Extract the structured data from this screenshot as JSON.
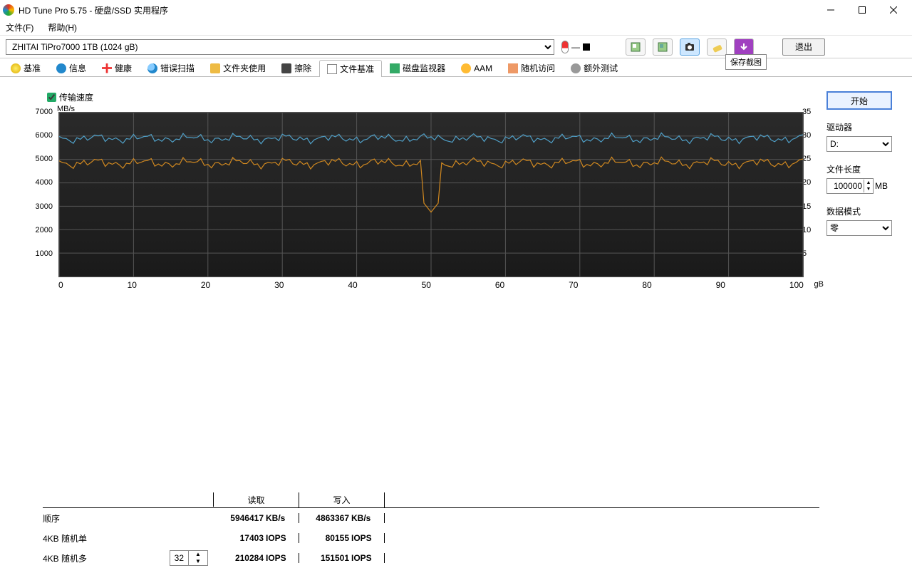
{
  "window": {
    "title": "HD Tune Pro 5.75 - 硬盘/SSD 实用程序"
  },
  "menu": {
    "file": "文件(F)",
    "help": "帮助(H)"
  },
  "toolbar": {
    "drive_selected": "ZHITAI TiPro7000 1TB (1024 gB)",
    "temp_dash": "—",
    "tooltip": "保存截图",
    "exit_label": "退出"
  },
  "tabs": [
    {
      "label": "基准"
    },
    {
      "label": "信息"
    },
    {
      "label": "健康"
    },
    {
      "label": "错误扫描"
    },
    {
      "label": "文件夹使用"
    },
    {
      "label": "擦除"
    },
    {
      "label": "文件基准"
    },
    {
      "label": "磁盘监视器"
    },
    {
      "label": "AAM"
    },
    {
      "label": "随机访问"
    },
    {
      "label": "额外测试"
    }
  ],
  "active_tab": 6,
  "checkbox": {
    "label": "传输速度",
    "checked": true
  },
  "chart": {
    "type": "line",
    "background_color": "#222222",
    "grid_color": "#555555",
    "left_axis": {
      "unit": "MB/s",
      "min": 0,
      "max": 7000,
      "ticks": [
        1000,
        2000,
        3000,
        4000,
        5000,
        6000,
        7000
      ]
    },
    "right_axis": {
      "min": 0,
      "max": 35,
      "ticks": [
        5,
        10,
        15,
        20,
        25,
        30,
        35
      ]
    },
    "x_axis": {
      "min": 0,
      "max": 100,
      "step": 10,
      "unit": "gB"
    },
    "series": [
      {
        "name": "read",
        "color": "#50a0c8",
        "avg": 5900,
        "min": 5600,
        "max": 6100
      },
      {
        "name": "write",
        "color": "#d08820",
        "avg": 4850,
        "min": 4500,
        "max": 5050,
        "dip_x": 50,
        "dip_y": 2750
      }
    ]
  },
  "results": {
    "headers": {
      "read": "读取",
      "write": "写入"
    },
    "rows": [
      {
        "label": "顺序",
        "read_val": "5946417",
        "read_unit": "KB/s",
        "write_val": "4863367",
        "write_unit": "KB/s"
      },
      {
        "label": "4KB 随机单",
        "read_val": "17403",
        "read_unit": "IOPS",
        "write_val": "80155",
        "write_unit": "IOPS"
      },
      {
        "label": "4KB 随机多",
        "stepper": "32",
        "read_val": "210284",
        "read_unit": "IOPS",
        "write_val": "151501",
        "write_unit": "IOPS"
      }
    ]
  },
  "side": {
    "start": "开始",
    "driver_label": "驱动器",
    "driver_value": "D:",
    "filelen_label": "文件长度",
    "filelen_value": "100000",
    "filelen_unit": "MB",
    "pattern_label": "数据模式",
    "pattern_value": "零"
  }
}
